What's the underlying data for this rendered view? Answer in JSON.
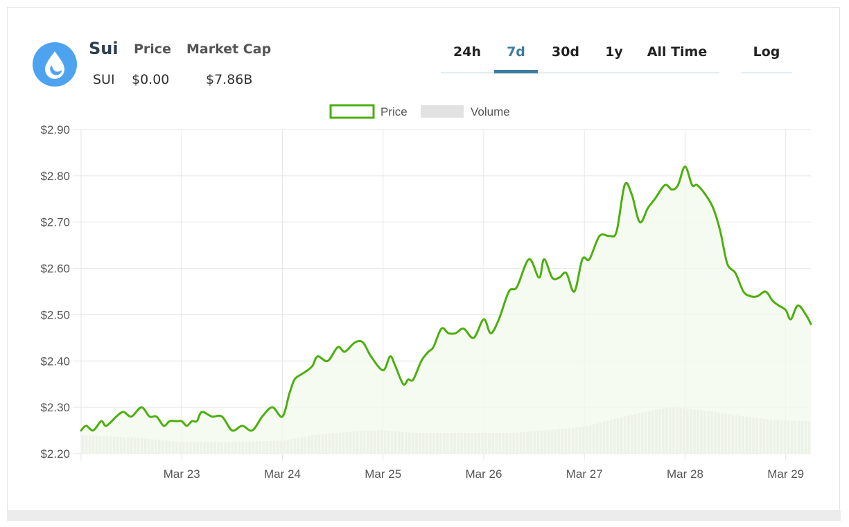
{
  "coin": {
    "name": "Sui",
    "symbol": "SUI",
    "price_label": "Price",
    "price_value": "$0.00",
    "market_cap_label": "Market Cap",
    "market_cap_value": "$7.86B",
    "brand_color": "#4ea3f0"
  },
  "range_tabs": [
    {
      "label": "24h",
      "active": false
    },
    {
      "label": "7d",
      "active": true
    },
    {
      "label": "30d",
      "active": false
    },
    {
      "label": "1y",
      "active": false
    },
    {
      "label": "All Time",
      "active": false
    }
  ],
  "log_label": "Log",
  "colors": {
    "accent": "#3d7ca0",
    "price_line": "#4caf0f",
    "price_fill": "#f3faee",
    "volume": "#dcdcdc"
  },
  "chart_data": {
    "type": "line",
    "title": "",
    "legend": [
      "Price",
      "Volume"
    ],
    "legend_position": "top-center",
    "xlabel": "",
    "ylabel": "",
    "grid": true,
    "x_range": [
      22.0,
      29.25
    ],
    "ylim": [
      2.2,
      2.9
    ],
    "y_ticks": [
      2.2,
      2.3,
      2.4,
      2.5,
      2.6,
      2.7,
      2.8,
      2.9
    ],
    "y_tick_labels": [
      "$2.20",
      "$2.30",
      "$2.40",
      "$2.50",
      "$2.60",
      "$2.70",
      "$2.80",
      "$2.90"
    ],
    "x_ticks": [
      23,
      24,
      25,
      26,
      27,
      28,
      29
    ],
    "x_tick_labels": [
      "Mar 23",
      "Mar 24",
      "Mar 25",
      "Mar 26",
      "Mar 27",
      "Mar 28",
      "Mar 29"
    ],
    "series": [
      {
        "name": "Price",
        "x": [
          22.0,
          22.05,
          22.12,
          22.2,
          22.25,
          22.35,
          22.42,
          22.5,
          22.6,
          22.68,
          22.75,
          22.82,
          22.88,
          22.95,
          23.0,
          23.05,
          23.1,
          23.15,
          23.2,
          23.3,
          23.4,
          23.5,
          23.6,
          23.7,
          23.8,
          23.9,
          24.0,
          24.07,
          24.12,
          24.18,
          24.25,
          24.3,
          24.35,
          24.45,
          24.55,
          24.62,
          24.72,
          24.8,
          24.88,
          25.0,
          25.07,
          25.12,
          25.2,
          25.25,
          25.3,
          25.38,
          25.45,
          25.5,
          25.58,
          25.65,
          25.72,
          25.8,
          25.9,
          26.0,
          26.07,
          26.15,
          26.25,
          26.33,
          26.45,
          26.55,
          26.6,
          26.68,
          26.75,
          26.82,
          26.9,
          26.98,
          27.05,
          27.15,
          27.25,
          27.32,
          27.4,
          27.47,
          27.55,
          27.63,
          27.7,
          27.8,
          27.87,
          27.93,
          28.0,
          28.07,
          28.12,
          28.2,
          28.28,
          28.35,
          28.42,
          28.5,
          28.58,
          28.65,
          28.72,
          28.8,
          28.87,
          28.93,
          29.0,
          29.05,
          29.12,
          29.2,
          29.25
        ],
        "values": [
          2.25,
          2.26,
          2.25,
          2.27,
          2.26,
          2.28,
          2.29,
          2.28,
          2.3,
          2.28,
          2.28,
          2.26,
          2.27,
          2.27,
          2.27,
          2.26,
          2.27,
          2.27,
          2.29,
          2.28,
          2.28,
          2.25,
          2.26,
          2.25,
          2.28,
          2.3,
          2.28,
          2.33,
          2.36,
          2.37,
          2.38,
          2.39,
          2.41,
          2.4,
          2.43,
          2.42,
          2.44,
          2.44,
          2.41,
          2.38,
          2.41,
          2.39,
          2.35,
          2.36,
          2.36,
          2.4,
          2.42,
          2.43,
          2.47,
          2.46,
          2.46,
          2.47,
          2.45,
          2.49,
          2.46,
          2.49,
          2.55,
          2.56,
          2.62,
          2.58,
          2.62,
          2.58,
          2.58,
          2.59,
          2.55,
          2.62,
          2.62,
          2.67,
          2.67,
          2.68,
          2.78,
          2.76,
          2.7,
          2.73,
          2.75,
          2.78,
          2.77,
          2.78,
          2.82,
          2.78,
          2.78,
          2.76,
          2.73,
          2.68,
          2.61,
          2.59,
          2.55,
          2.54,
          2.54,
          2.55,
          2.53,
          2.52,
          2.51,
          2.49,
          2.52,
          2.5,
          2.48
        ]
      },
      {
        "name": "Volume",
        "x_start": 22.0,
        "x_end": 29.25,
        "bar_count": 210,
        "value_scale": "price-axis baseline level",
        "profile_x": [
          22.0,
          22.5,
          23.0,
          23.5,
          24.0,
          24.3,
          24.7,
          25.0,
          25.3,
          25.7,
          26.0,
          26.3,
          26.7,
          27.0,
          27.3,
          27.6,
          27.85,
          28.0,
          28.3,
          28.6,
          28.9,
          29.25
        ],
        "profile_values": [
          2.24,
          2.235,
          2.225,
          2.225,
          2.228,
          2.24,
          2.248,
          2.25,
          2.245,
          2.245,
          2.245,
          2.245,
          2.252,
          2.258,
          2.275,
          2.29,
          2.3,
          2.298,
          2.29,
          2.28,
          2.272,
          2.27
        ]
      }
    ]
  }
}
